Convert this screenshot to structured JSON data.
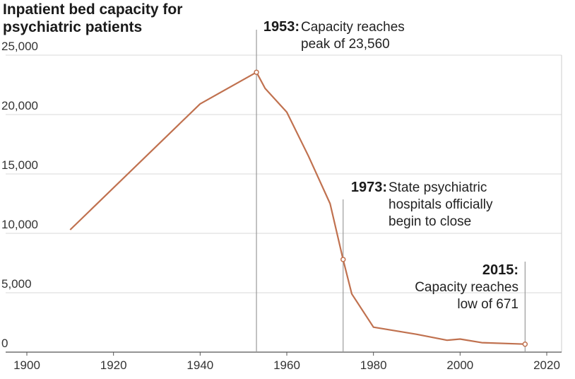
{
  "chart_data": {
    "type": "line",
    "title_lines": [
      "Inpatient bed capacity for",
      "psychiatric patients"
    ],
    "x_ticks": [
      1900,
      1920,
      1940,
      1960,
      1980,
      2000,
      2020
    ],
    "y_ticks": [
      0,
      5000,
      10000,
      15000,
      20000,
      25000
    ],
    "y_tick_labels": [
      "0",
      "5,000",
      "10,000",
      "15,000",
      "20,000",
      "25,000"
    ],
    "xlim": [
      1900,
      2020
    ],
    "ylim": [
      0,
      25000
    ],
    "grid": "horizontal",
    "line_color": "#c0714f",
    "series": [
      {
        "points": [
          {
            "x": 1910,
            "y": 10300
          },
          {
            "x": 1940,
            "y": 20900
          },
          {
            "x": 1953,
            "y": 23560
          },
          {
            "x": 1955,
            "y": 22200
          },
          {
            "x": 1960,
            "y": 20200
          },
          {
            "x": 1965,
            "y": 16500
          },
          {
            "x": 1970,
            "y": 12500
          },
          {
            "x": 1973,
            "y": 7800
          },
          {
            "x": 1975,
            "y": 4900
          },
          {
            "x": 1980,
            "y": 2100
          },
          {
            "x": 1990,
            "y": 1500
          },
          {
            "x": 1997,
            "y": 1000
          },
          {
            "x": 2000,
            "y": 1100
          },
          {
            "x": 2005,
            "y": 800
          },
          {
            "x": 2015,
            "y": 671
          }
        ]
      }
    ],
    "annotations": [
      {
        "x": 1953,
        "year": "1953:",
        "lines": [
          "Capacity reaches",
          "peak of 23,560"
        ]
      },
      {
        "x": 1973,
        "year": "1973:",
        "lines": [
          "State psychiatric",
          "hospitals officially",
          "begin to close"
        ]
      },
      {
        "x": 2015,
        "year": "2015:",
        "lines": [
          "Capacity reaches",
          "low of 671"
        ]
      }
    ]
  }
}
